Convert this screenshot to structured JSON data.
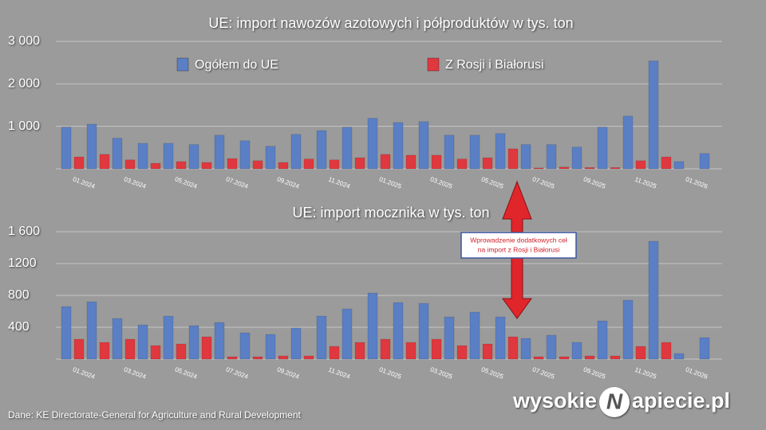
{
  "chart_data": [
    {
      "type": "bar",
      "title": "UE: import nawozów azotowych i półproduktów w tys. ton",
      "categories": [
        "01.2024",
        null,
        "03.2024",
        null,
        "05.2024",
        null,
        "07.2024",
        null,
        "09.2024",
        null,
        "11.2024",
        null,
        "01.2025",
        null,
        "03.2025",
        null,
        "05.2025",
        null,
        "07.2025",
        null,
        "09.2025",
        null,
        "11.2025",
        null,
        "01.2026",
        null
      ],
      "series": [
        {
          "name": "Ogółem do UE",
          "color": "#5b7fc4",
          "values": [
            980,
            1050,
            720,
            600,
            600,
            570,
            790,
            660,
            530,
            810,
            900,
            980,
            1190,
            1090,
            1110,
            790,
            790,
            830,
            570,
            570,
            510,
            980,
            1240,
            2540,
            170,
            360
          ]
        },
        {
          "name": "Z Rosji i Białorusi",
          "color": "#e0383f",
          "values": [
            280,
            340,
            210,
            130,
            170,
            150,
            240,
            190,
            150,
            230,
            210,
            260,
            340,
            320,
            320,
            230,
            260,
            470,
            20,
            40,
            30,
            30,
            190,
            280,
            null,
            null
          ]
        }
      ],
      "ylim": [
        0,
        3000
      ],
      "yticks": [
        {
          "value": 1000,
          "label": "1 000"
        },
        {
          "value": 2000,
          "label": "2 000"
        },
        {
          "value": 3000,
          "label": "3 000"
        }
      ],
      "grid": true,
      "legend": "top"
    },
    {
      "type": "bar",
      "title": "UE: import mocznika w tys. ton",
      "categories": [
        "01.2024",
        null,
        "03.2024",
        null,
        "05.2024",
        null,
        "07.2024",
        null,
        "09.2024",
        null,
        "11.2024",
        null,
        "01.2025",
        null,
        "03.2025",
        null,
        "05.2025",
        null,
        "07.2025",
        null,
        "09.2025",
        null,
        "11.2025",
        null,
        "01.2026",
        null
      ],
      "series": [
        {
          "color": "#5b7fc4",
          "values": [
            660,
            720,
            510,
            430,
            540,
            420,
            460,
            330,
            310,
            390,
            540,
            630,
            830,
            710,
            700,
            530,
            590,
            530,
            260,
            300,
            210,
            480,
            740,
            1480,
            70,
            270
          ]
        },
        {
          "color": "#e0383f",
          "values": [
            250,
            210,
            250,
            170,
            190,
            280,
            30,
            30,
            40,
            40,
            160,
            210,
            250,
            210,
            250,
            170,
            190,
            280,
            30,
            30,
            40,
            40,
            160,
            210,
            null,
            null
          ]
        }
      ],
      "ylim": [
        0,
        1600
      ],
      "yticks": [
        400,
        800,
        1200,
        {
          "value": 1600,
          "label": "1 600"
        }
      ],
      "grid": true
    }
  ],
  "annotation": [
    "Wprowadzenie dodatkowych ceł",
    "na import z Rosji i Białorusi"
  ],
  "source": "Dane: KE Directorate-General for Agriculture and Rural Development",
  "logo": {
    "left": "wysokie",
    "mark": "N",
    "right": "apiecie.pl"
  }
}
